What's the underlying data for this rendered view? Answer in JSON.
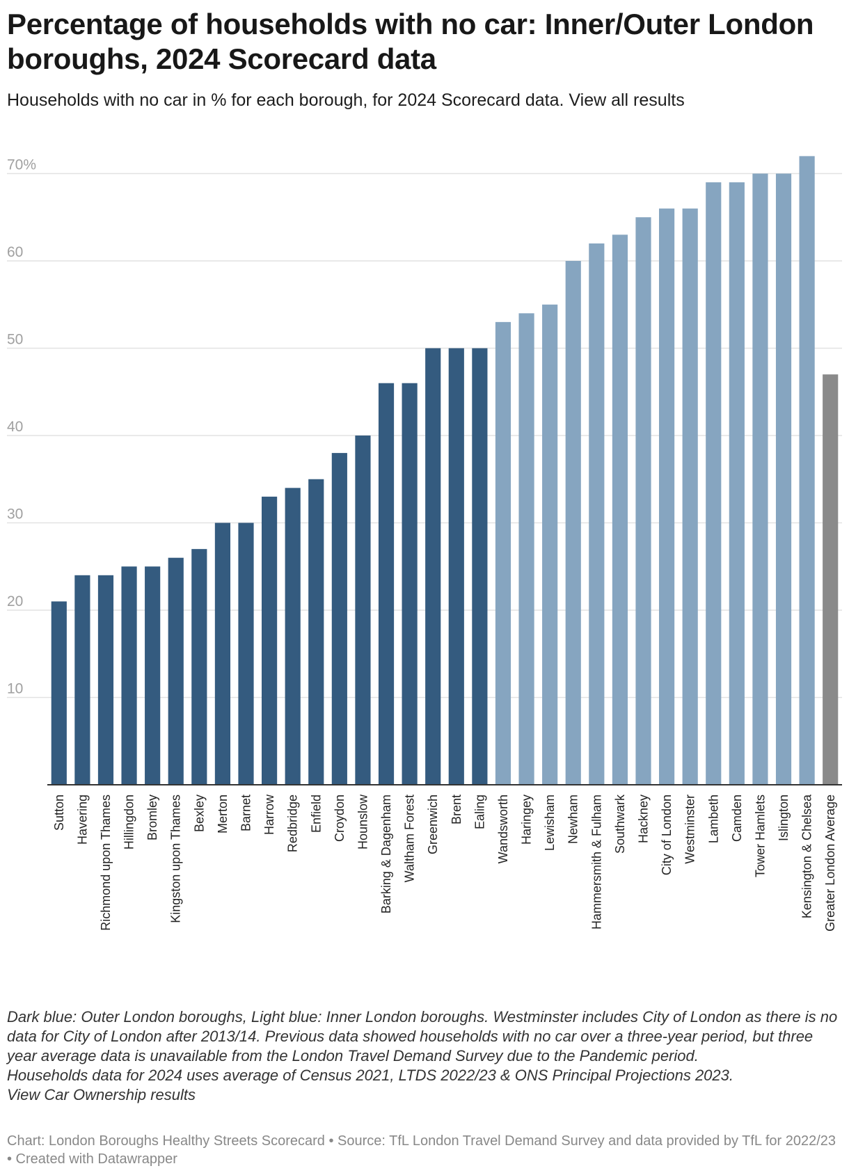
{
  "header": {
    "title": "Percentage of households with no car: Inner/Outer London boroughs, 2024 Scorecard data",
    "subtitle": "Households with no car in % for each borough, for 2024 Scorecard data. View all results"
  },
  "notes": {
    "line1": "Dark blue: Outer London boroughs, Light blue: Inner London boroughs. Westminster includes City of London as there is no data for City of London after 2013/14. Previous data showed households with no car over a three-year period, but three year average data is unavailable from the London Travel Demand Survey due to the Pandemic period.",
    "line2": "Households data for 2024 uses average of Census 2021, LTDS 2022/23 & ONS Principal Projections 2023.",
    "line3": "View Car Ownership results"
  },
  "footer": {
    "credit": "Chart: London Boroughs Healthy Streets Scorecard • Source: TfL London Travel Demand Survey and data provided by TfL for 2022/23 • Created with Datawrapper"
  },
  "chart_data": {
    "type": "bar",
    "title": "Percentage of households with no car: Inner/Outer London boroughs, 2024 Scorecard data",
    "xlabel": "",
    "ylabel": "",
    "ylim": [
      0,
      72
    ],
    "yticks": [
      10,
      20,
      30,
      40,
      50,
      60,
      70
    ],
    "ytick_labels": [
      "10",
      "20",
      "30",
      "40",
      "50",
      "60",
      "70%"
    ],
    "grid": true,
    "colors": {
      "outer": "#345b7f",
      "inner": "#86a5c0",
      "average": "#8a8a8a",
      "grid": "#e2e2e2",
      "axis": "#333333",
      "tick_text": "#a0a0a0"
    },
    "categories": [
      "Sutton",
      "Havering",
      "Richmond upon Thames",
      "Hillingdon",
      "Bromley",
      "Kingston upon Thames",
      "Bexley",
      "Merton",
      "Barnet",
      "Harrow",
      "Redbridge",
      "Enfield",
      "Croydon",
      "Hounslow",
      "Barking & Dagenham",
      "Waltham Forest",
      "Greenwich",
      "Brent",
      "Ealing",
      "Wandsworth",
      "Haringey",
      "Lewisham",
      "Newham",
      "Hammersmith & Fulham",
      "Southwark",
      "Hackney",
      "City of London",
      "Westminster",
      "Lambeth",
      "Camden",
      "Tower Hamlets",
      "Islington",
      "Kensington & Chelsea",
      "Greater London Average"
    ],
    "values": [
      21,
      24,
      24,
      25,
      25,
      26,
      27,
      30,
      30,
      33,
      34,
      35,
      38,
      40,
      46,
      46,
      50,
      50,
      50,
      53,
      54,
      55,
      60,
      62,
      63,
      65,
      66,
      66,
      69,
      69,
      70,
      70,
      72,
      47
    ],
    "groups": [
      "outer",
      "outer",
      "outer",
      "outer",
      "outer",
      "outer",
      "outer",
      "outer",
      "outer",
      "outer",
      "outer",
      "outer",
      "outer",
      "outer",
      "outer",
      "outer",
      "outer",
      "outer",
      "outer",
      "inner",
      "inner",
      "inner",
      "inner",
      "inner",
      "inner",
      "inner",
      "inner",
      "inner",
      "inner",
      "inner",
      "inner",
      "inner",
      "inner",
      "average"
    ]
  }
}
